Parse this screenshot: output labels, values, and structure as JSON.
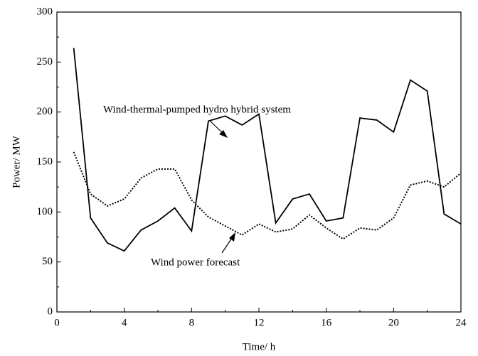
{
  "chart_data": {
    "type": "line",
    "x": [
      1,
      2,
      3,
      4,
      5,
      6,
      7,
      8,
      9,
      10,
      11,
      12,
      13,
      14,
      15,
      16,
      17,
      18,
      19,
      20,
      21,
      22,
      23,
      24
    ],
    "series": [
      {
        "name": "Wind-thermal-pumped hydro hybrid system",
        "color": "#000000",
        "dash": "solid",
        "values": [
          264,
          94,
          69,
          61,
          82,
          91,
          104,
          81,
          191,
          196,
          187,
          198,
          89,
          113,
          118,
          91,
          94,
          194,
          192,
          180,
          232,
          221,
          98,
          88
        ]
      },
      {
        "name": "Wind power forecast",
        "color": "#000000",
        "dash": "dotted",
        "values": [
          160,
          118,
          106,
          113,
          134,
          143,
          143,
          112,
          95,
          86,
          77,
          88,
          80,
          83,
          97,
          84,
          73,
          84,
          82,
          94,
          127,
          131,
          125,
          139
        ]
      }
    ],
    "xlabel": "Time/ h",
    "ylabel": "Power/ MW",
    "xlim": [
      0,
      24
    ],
    "xticks": [
      0,
      4,
      8,
      12,
      16,
      20,
      24
    ],
    "ylim": [
      0,
      300
    ],
    "yticks": [
      0,
      50,
      100,
      150,
      200,
      250,
      300
    ],
    "grid": false
  }
}
